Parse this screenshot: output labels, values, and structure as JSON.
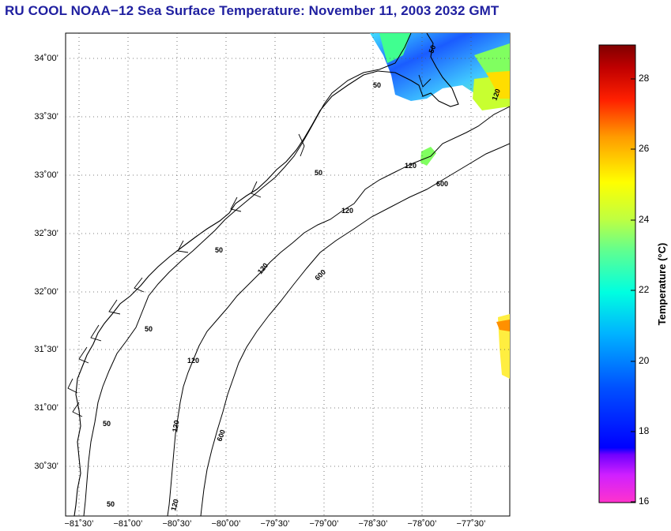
{
  "title": "RU COOL  NOAA−12  Sea Surface Temperature:  November 11, 2003 2032 GMT",
  "map": {
    "lat_labels": [
      "34˚00’",
      "33˚30’",
      "33˚00’",
      "32˚30’",
      "32˚00’",
      "31˚30’",
      "31˚00’",
      "30˚30’"
    ],
    "lon_labels": [
      "−81˚30’",
      "−81˚00’",
      "−80˚30’",
      "−80˚00’",
      "−79˚30’",
      "−79˚00’",
      "−78˚30’",
      "−78˚00’",
      "−77˚30’"
    ],
    "contours": [
      {
        "label": "50"
      },
      {
        "label": "50"
      },
      {
        "label": "50"
      },
      {
        "label": "50"
      },
      {
        "label": "50"
      },
      {
        "label": "50"
      },
      {
        "label": "50"
      },
      {
        "label": "120"
      },
      {
        "label": "120"
      },
      {
        "label": "120"
      },
      {
        "label": "120"
      },
      {
        "label": "120"
      },
      {
        "label": "120"
      },
      {
        "label": "120"
      },
      {
        "label": "600"
      },
      {
        "label": "600"
      },
      {
        "label": "600"
      }
    ],
    "grid": true,
    "grid_style": "dotted"
  },
  "colorbar": {
    "title": "Temperature (°C)",
    "ticks": [
      "28",
      "26",
      "24",
      "22",
      "20",
      "18",
      "16"
    ],
    "range": [
      16,
      29
    ],
    "colors": [
      "#ff33cc",
      "#8000ff",
      "#0000ff",
      "#0080ff",
      "#00ffff",
      "#80ff80",
      "#ffff00",
      "#ff8000",
      "#ff0000",
      "#800000"
    ]
  }
}
